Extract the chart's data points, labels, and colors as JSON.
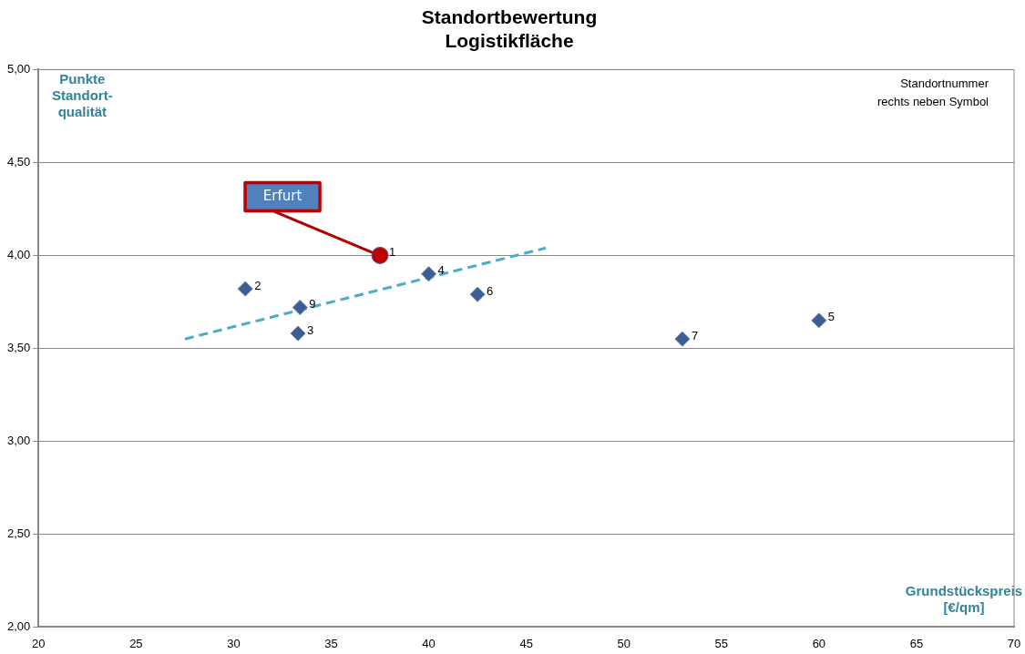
{
  "chart_data": {
    "type": "scatter",
    "title": "Standortbewertung\nLogistikfläche",
    "xlabel": "Grundstückspreis\n[€/qm]",
    "ylabel": "Punkte\nStandort-\nqualität",
    "xlim": [
      20,
      70
    ],
    "xticks": [
      20,
      25,
      30,
      35,
      40,
      45,
      50,
      55,
      60,
      65,
      70
    ],
    "ylim": [
      2,
      5
    ],
    "yticks": [
      {
        "value": 2,
        "label": "2,00"
      },
      {
        "value": 2.5,
        "label": "2,50"
      },
      {
        "value": 3,
        "label": "3,00"
      },
      {
        "value": 3.5,
        "label": "3,50"
      },
      {
        "value": 4,
        "label": "4,00"
      },
      {
        "value": 4.5,
        "label": "4,50"
      },
      {
        "value": 5,
        "label": "5,00"
      }
    ],
    "grid": "y",
    "legend": false,
    "series": [
      {
        "marker": "circle",
        "color": "#c00000",
        "x": [
          37.5
        ],
        "values": [
          4.0
        ]
      },
      {
        "marker": "diamond",
        "color": "#3b5e95",
        "x": [
          30.6,
          33.3,
          40.0,
          60.0,
          42.5,
          53.0,
          33.4
        ],
        "values": [
          3.82,
          3.58,
          3.9,
          3.65,
          3.79,
          3.55,
          3.72
        ]
      },
      {
        "type": "line",
        "marker": "none",
        "line_style": "dashed",
        "color": "#4bacc6",
        "x": [
          27.5,
          46.0
        ],
        "values": [
          3.55,
          4.04
        ]
      }
    ],
    "annotations": [
      {
        "text": "Erfurt",
        "x": 37.5,
        "y": 4.0
      },
      {
        "text": "1",
        "x": 37.5,
        "y": 4.0
      },
      {
        "text": "2",
        "x": 30.6,
        "y": 3.82
      },
      {
        "text": "3",
        "x": 33.3,
        "y": 3.58
      },
      {
        "text": "4",
        "x": 40.0,
        "y": 3.9
      },
      {
        "text": "5",
        "x": 60.0,
        "y": 3.65
      },
      {
        "text": "6",
        "x": 42.5,
        "y": 3.79
      },
      {
        "text": "7",
        "x": 53.0,
        "y": 3.55
      },
      {
        "text": "9",
        "x": 33.4,
        "y": 3.72
      },
      "Standortnummer\nrechts neben Symbol"
    ]
  }
}
